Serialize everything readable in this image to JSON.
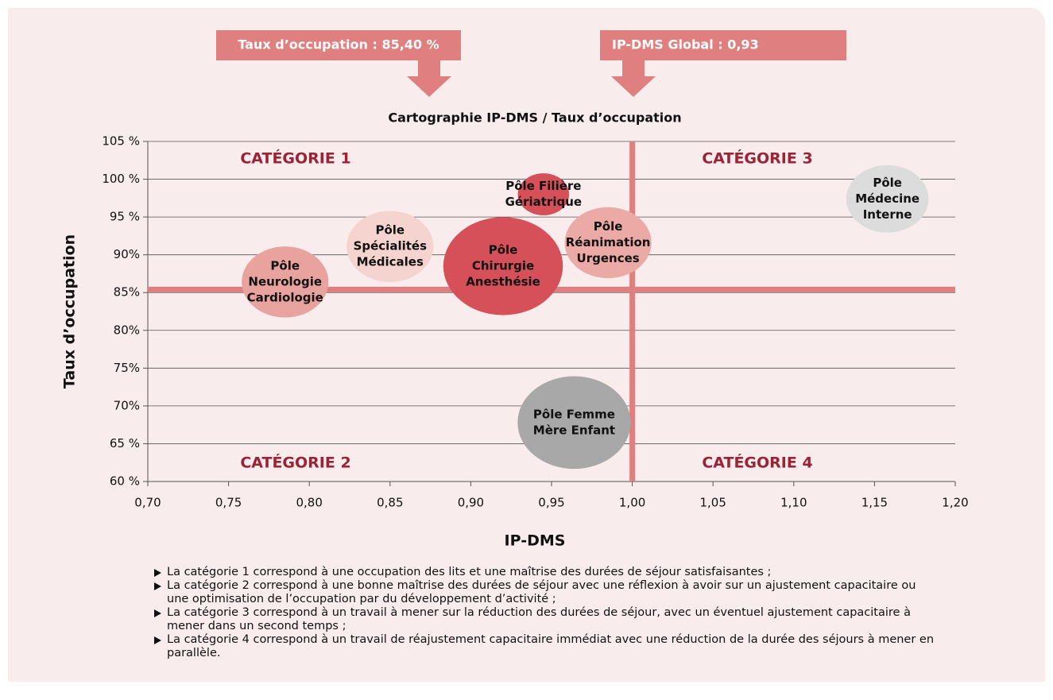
{
  "chart_data": {
    "type": "bubble",
    "title": "Cartographie IP-DMS / Taux d’occupation",
    "xlabel": "IP-DMS",
    "ylabel": "Taux d’occupation",
    "annotations": [
      "Taux d’occupation : 85,40 %",
      "IP-DMS Global : 0,93"
    ],
    "quadrant_labels": [
      "CATÉGORIE 1",
      "CATÉGORIE 2",
      "CATÉGORIE 3",
      "CATÉGORIE 4"
    ],
    "reference_lines": {
      "y": 85.4,
      "x": 1.0,
      "color": "#e07f80"
    },
    "xlim": [
      0.7,
      1.2
    ],
    "ylim": [
      60,
      105
    ],
    "xticks": [
      {
        "value": 0.7,
        "label": "0,70"
      },
      {
        "value": 0.75,
        "label": "0,75"
      },
      {
        "value": 0.8,
        "label": "0,80"
      },
      {
        "value": 0.85,
        "label": "0,85"
      },
      {
        "value": 0.9,
        "label": "0,90"
      },
      {
        "value": 0.95,
        "label": "0,95"
      },
      {
        "value": 1.0,
        "label": "1,00"
      },
      {
        "value": 1.05,
        "label": "1,05"
      },
      {
        "value": 1.1,
        "label": "1,10"
      },
      {
        "value": 1.15,
        "label": "1,15"
      },
      {
        "value": 1.2,
        "label": "1,20"
      }
    ],
    "yticks": [
      {
        "value": 60,
        "label": "60 %"
      },
      {
        "value": 65,
        "label": "65 %"
      },
      {
        "value": 70,
        "label": "70%"
      },
      {
        "value": 75,
        "label": "75%"
      },
      {
        "value": 80,
        "label": "80%"
      },
      {
        "value": 85,
        "label": "85%"
      },
      {
        "value": 90,
        "label": "90%"
      },
      {
        "value": 95,
        "label": "95 %"
      },
      {
        "value": 100,
        "label": "100 %"
      },
      {
        "value": 105,
        "label": "105 %"
      }
    ],
    "grid": true,
    "series": [
      {
        "label": [
          "Pôle",
          "Neurologie",
          "Cardiologie"
        ],
        "color": "#e8a39e",
        "x": 0.785,
        "y": 86.4,
        "size": 20
      },
      {
        "label": [
          "Pôle",
          "Spécialités",
          "Médicales"
        ],
        "color": "#f5d3cf",
        "x": 0.85,
        "y": 91.1,
        "size": 20
      },
      {
        "label": [
          "Pôle",
          "Chirurgie",
          "Anesthésie"
        ],
        "color": "#d6505a",
        "x": 0.92,
        "y": 88.5,
        "size": 38
      },
      {
        "label": [
          "Pôle Filière",
          "Gériatrique"
        ],
        "color": "#d6505a",
        "x": 0.945,
        "y": 98,
        "size": 7
      },
      {
        "label": [
          "Pôle",
          "Réanimation",
          "Urgences"
        ],
        "color": "#ebaaa5",
        "x": 0.985,
        "y": 91.6,
        "size": 20
      },
      {
        "label": [
          "Pôle",
          "Médecine",
          "Interne"
        ],
        "color": "#dcdcdc",
        "x": 1.158,
        "y": 97.4,
        "size": 18
      },
      {
        "label": [
          "Pôle Femme",
          "Mère Enfant"
        ],
        "color": "#a8a8a8",
        "x": 0.964,
        "y": 67.8,
        "size": 34
      }
    ]
  },
  "notes": [
    "La catégorie 1 correspond à une occupation des lits et une maîtrise des durées de séjour satisfaisantes ;",
    "La catégorie 2 correspond à une bonne maîtrise des durées de séjour avec une réflexion à avoir sur un ajustement capacitaire ou une optimisation de l’occupation par du développement d’activité ;",
    "La catégorie 3 correspond à un travail à mener sur la réduction des durées de séjour, avec un éventuel ajustement capacitaire à mener dans un second temps ;",
    "La catégorie 4 correspond à un travail de réajustement capacitaire immédiat avec une réduction de la durée des séjours à mener en parallèle."
  ]
}
